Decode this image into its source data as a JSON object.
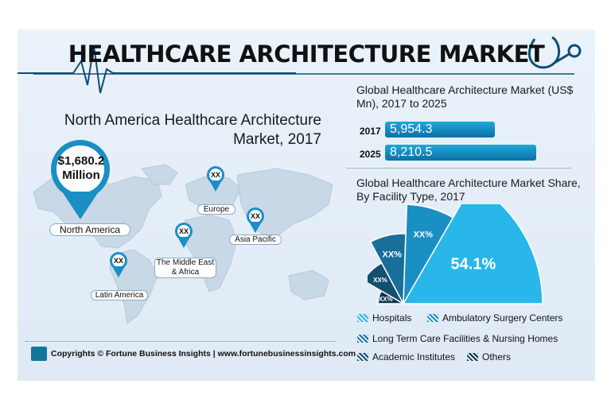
{
  "header": {
    "title": "HEALTHCARE ARCHITECTURE MARKET"
  },
  "map_section": {
    "title_line1": "North America Healthcare Architecture",
    "title_line2": "Market, 2017",
    "highlight_value_line1": "$1,680.2",
    "highlight_value_line2": "Million",
    "regions": [
      {
        "name": "North America",
        "value": "$1,680.2 Million"
      },
      {
        "name": "Europe",
        "value": "XX"
      },
      {
        "name": "Asia Pacific",
        "value": "XX"
      },
      {
        "name": "The Middle East & Africa",
        "value": "XX"
      },
      {
        "name": "Latin America",
        "value": "XX"
      }
    ]
  },
  "chart_data": [
    {
      "type": "bar",
      "title": "Global Healthcare Architecture Market (US$ Mn), 2017 to 2025",
      "categories": [
        "2017",
        "2025"
      ],
      "values": [
        5954.3,
        8210.5
      ],
      "value_labels": [
        "5,954.3",
        "8,210.5"
      ]
    },
    {
      "type": "pie",
      "title": "Global Healthcare Architecture Market Share, By Facility Type, 2017",
      "segments": [
        {
          "name": "Others",
          "label": "XX%"
        },
        {
          "name": "Academic Institutes",
          "label": "XX%"
        },
        {
          "name": "Long Term Care Facilities & Nursing Homes",
          "label": "XX%"
        },
        {
          "name": "Ambulatory Surgery Centers",
          "label": "XX%"
        },
        {
          "name": "Hospitals",
          "label": "54.1%",
          "value": 54.1
        }
      ],
      "legend": [
        "Hospitals",
        "Ambulatory Surgery Centers",
        "Long Term Care Facilities & Nursing Homes",
        "Academic Institutes",
        "Others"
      ]
    }
  ],
  "colors": {
    "hospitals": "#29b6e8",
    "ambulatory": "#1a8fc4",
    "long_term": "#1a6f9a",
    "academic": "#134f6f",
    "others": "#0c3550",
    "bar": "#1a9fd6"
  },
  "footer": {
    "text": "Copyrights © Fortune Business Insights | www.fortunebusinessinsights.com"
  }
}
